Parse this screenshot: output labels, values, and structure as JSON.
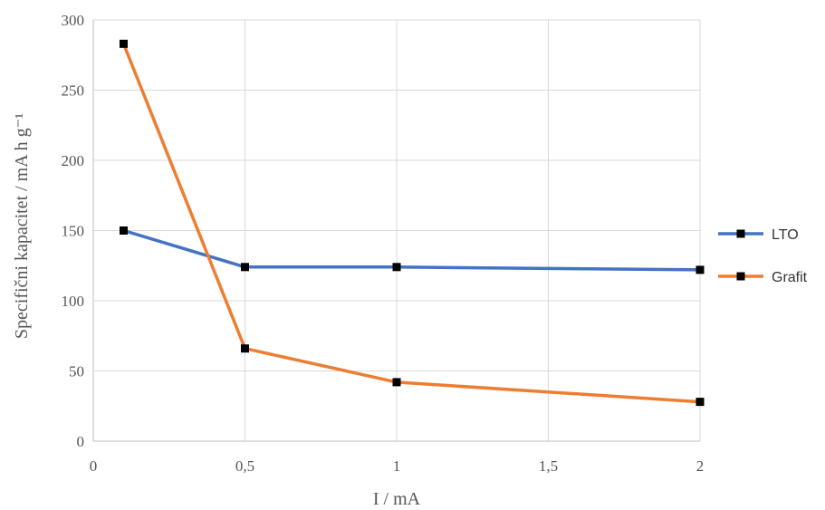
{
  "chart_data": {
    "type": "line",
    "xlabel": "I / mA",
    "ylabel": "Specifični kapacitet / mA h g⁻¹",
    "xlim": [
      0,
      2
    ],
    "ylim": [
      0,
      300
    ],
    "x_ticks": [
      0,
      0.5,
      1,
      1.5,
      2
    ],
    "x_tick_labels": [
      "0",
      "0,5",
      "1",
      "1,5",
      "2"
    ],
    "y_ticks": [
      0,
      50,
      100,
      150,
      200,
      250,
      300
    ],
    "y_tick_labels": [
      "0",
      "50",
      "100",
      "150",
      "200",
      "250",
      "300"
    ],
    "grid": true,
    "legend_position": "right",
    "series": [
      {
        "name": "LTO",
        "color": "#4472C4",
        "x": [
          0.1,
          0.5,
          1,
          2
        ],
        "y": [
          150,
          124,
          124,
          122
        ]
      },
      {
        "name": "Grafit",
        "color": "#ED7D31",
        "x": [
          0.1,
          0.5,
          1,
          2
        ],
        "y": [
          283,
          66,
          42,
          28
        ]
      }
    ]
  }
}
